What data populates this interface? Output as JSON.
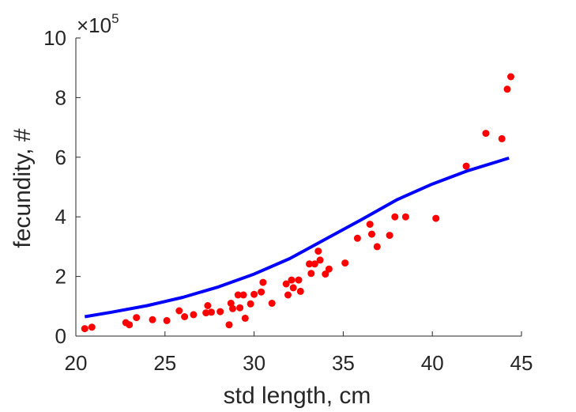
{
  "chart_data": {
    "type": "scatter",
    "xlabel": "std length, cm",
    "ylabel": "fecundity, #",
    "xlim": [
      20,
      45
    ],
    "ylim": [
      0,
      10
    ],
    "xticks": [
      20,
      25,
      30,
      35,
      40,
      45
    ],
    "yticks": [
      0,
      2,
      4,
      6,
      8,
      10
    ],
    "y_exponent_label": "×10",
    "y_exponent_power": "5",
    "grid": false,
    "series": [
      {
        "kind": "scatter",
        "color": "#ff0000",
        "points": [
          [
            20.5,
            0.25
          ],
          [
            20.9,
            0.3
          ],
          [
            22.8,
            0.45
          ],
          [
            23.0,
            0.38
          ],
          [
            23.4,
            0.62
          ],
          [
            24.3,
            0.55
          ],
          [
            25.1,
            0.52
          ],
          [
            25.8,
            0.85
          ],
          [
            26.1,
            0.65
          ],
          [
            26.6,
            0.72
          ],
          [
            27.3,
            0.78
          ],
          [
            27.4,
            1.02
          ],
          [
            27.6,
            0.8
          ],
          [
            28.1,
            0.82
          ],
          [
            28.6,
            0.38
          ],
          [
            28.7,
            1.1
          ],
          [
            28.8,
            0.92
          ],
          [
            29.1,
            1.38
          ],
          [
            29.2,
            0.95
          ],
          [
            29.4,
            1.38
          ],
          [
            29.5,
            0.6
          ],
          [
            29.8,
            1.08
          ],
          [
            30.0,
            1.4
          ],
          [
            30.4,
            1.48
          ],
          [
            30.5,
            1.8
          ],
          [
            31.0,
            1.1
          ],
          [
            31.8,
            1.75
          ],
          [
            31.9,
            1.38
          ],
          [
            32.1,
            1.88
          ],
          [
            32.2,
            1.62
          ],
          [
            32.5,
            1.88
          ],
          [
            32.6,
            1.5
          ],
          [
            33.1,
            2.42
          ],
          [
            33.2,
            2.1
          ],
          [
            33.4,
            2.42
          ],
          [
            33.6,
            2.85
          ],
          [
            33.7,
            2.55
          ],
          [
            34.0,
            2.08
          ],
          [
            34.2,
            2.25
          ],
          [
            35.1,
            2.45
          ],
          [
            35.8,
            3.28
          ],
          [
            36.5,
            3.75
          ],
          [
            36.6,
            3.42
          ],
          [
            36.9,
            3.0
          ],
          [
            37.6,
            3.38
          ],
          [
            37.9,
            4.0
          ],
          [
            38.5,
            4.0
          ],
          [
            40.2,
            3.95
          ],
          [
            41.9,
            5.7
          ],
          [
            43.0,
            6.8
          ],
          [
            43.9,
            6.62
          ],
          [
            44.2,
            8.28
          ],
          [
            44.4,
            8.7
          ]
        ]
      },
      {
        "kind": "line",
        "color": "#0000ff",
        "x": [
          20.5,
          22,
          24,
          26,
          28,
          30,
          32,
          34,
          36,
          38,
          40,
          42,
          44.3
        ],
        "y": [
          0.65,
          0.8,
          1.02,
          1.3,
          1.65,
          2.08,
          2.6,
          3.25,
          3.9,
          4.57,
          5.1,
          5.55,
          5.97
        ]
      }
    ]
  }
}
